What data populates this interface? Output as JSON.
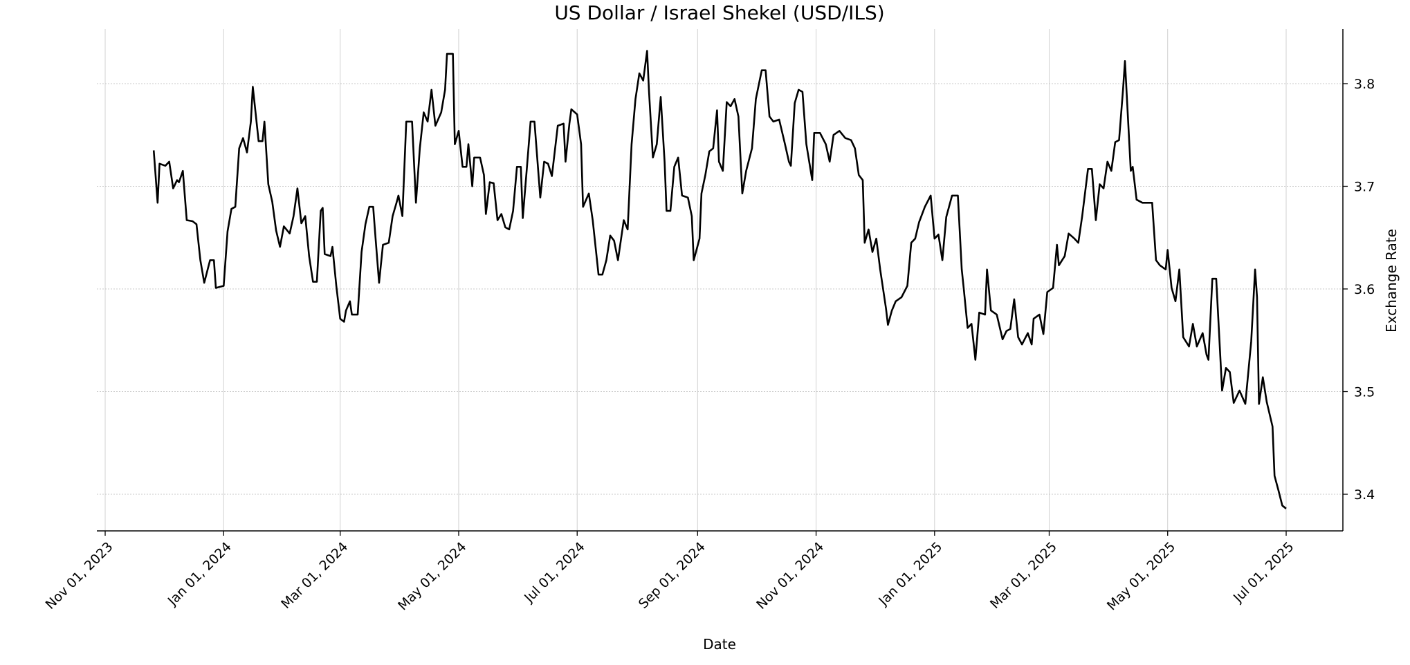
{
  "chart_data": {
    "type": "line",
    "title": "US Dollar / Israel Shekel (USD/ILS)",
    "xlabel": "Date",
    "ylabel": "Exchange Rate",
    "x_origin": "2023-11-01",
    "x_unit": "days since 2023-11-01",
    "xlim": [
      -4,
      626
    ],
    "ylim": [
      3.364,
      3.853
    ],
    "grid": true,
    "y_axis_side": "right",
    "x_ticks": [
      {
        "day": 0,
        "label": "Nov 01, 2023"
      },
      {
        "day": 61,
        "label": "Jan 01, 2024"
      },
      {
        "day": 121,
        "label": "Mar 01, 2024"
      },
      {
        "day": 182,
        "label": "May 01, 2024"
      },
      {
        "day": 243,
        "label": "Jul 01, 2024"
      },
      {
        "day": 305,
        "label": "Sep 01, 2024"
      },
      {
        "day": 366,
        "label": "Nov 01, 2024"
      },
      {
        "day": 427,
        "label": "Jan 01, 2025"
      },
      {
        "day": 486,
        "label": "Mar 01, 2025"
      },
      {
        "day": 547,
        "label": "May 01, 2025"
      },
      {
        "day": 608,
        "label": "Jul 01, 2025"
      }
    ],
    "y_ticks": [
      {
        "value": 3.4,
        "label": "3.4"
      },
      {
        "value": 3.5,
        "label": "3.5"
      },
      {
        "value": 3.6,
        "label": "3.6"
      },
      {
        "value": 3.7,
        "label": "3.7"
      },
      {
        "value": 3.8,
        "label": "3.8"
      }
    ],
    "series": [
      {
        "name": "USD/ILS",
        "color": "#000000",
        "points": [
          [
            25,
            3.735
          ],
          [
            27,
            3.684
          ],
          [
            28,
            3.722
          ],
          [
            31,
            3.72
          ],
          [
            33,
            3.724
          ],
          [
            35,
            3.698
          ],
          [
            37,
            3.706
          ],
          [
            38,
            3.704
          ],
          [
            40,
            3.715
          ],
          [
            42,
            3.667
          ],
          [
            45,
            3.666
          ],
          [
            47,
            3.663
          ],
          [
            49,
            3.628
          ],
          [
            51,
            3.606
          ],
          [
            54,
            3.628
          ],
          [
            56,
            3.628
          ],
          [
            57,
            3.601
          ],
          [
            61,
            3.603
          ],
          [
            63,
            3.656
          ],
          [
            65,
            3.678
          ],
          [
            67,
            3.68
          ],
          [
            69,
            3.737
          ],
          [
            71,
            3.747
          ],
          [
            73,
            3.733
          ],
          [
            75,
            3.763
          ],
          [
            76,
            3.797
          ],
          [
            79,
            3.744
          ],
          [
            81,
            3.744
          ],
          [
            82,
            3.763
          ],
          [
            84,
            3.702
          ],
          [
            86,
            3.685
          ],
          [
            88,
            3.657
          ],
          [
            90,
            3.641
          ],
          [
            92,
            3.661
          ],
          [
            95,
            3.654
          ],
          [
            97,
            3.671
          ],
          [
            99,
            3.698
          ],
          [
            101,
            3.664
          ],
          [
            103,
            3.671
          ],
          [
            105,
            3.632
          ],
          [
            107,
            3.607
          ],
          [
            109,
            3.607
          ],
          [
            111,
            3.676
          ],
          [
            112,
            3.679
          ],
          [
            113,
            3.634
          ],
          [
            116,
            3.632
          ],
          [
            117,
            3.641
          ],
          [
            119,
            3.603
          ],
          [
            121,
            3.571
          ],
          [
            123,
            3.568
          ],
          [
            124,
            3.579
          ],
          [
            126,
            3.588
          ],
          [
            127,
            3.575
          ],
          [
            130,
            3.575
          ],
          [
            132,
            3.636
          ],
          [
            134,
            3.663
          ],
          [
            136,
            3.68
          ],
          [
            138,
            3.68
          ],
          [
            139,
            3.654
          ],
          [
            141,
            3.606
          ],
          [
            143,
            3.643
          ],
          [
            146,
            3.645
          ],
          [
            148,
            3.671
          ],
          [
            150,
            3.684
          ],
          [
            151,
            3.691
          ],
          [
            153,
            3.671
          ],
          [
            155,
            3.763
          ],
          [
            158,
            3.763
          ],
          [
            160,
            3.684
          ],
          [
            162,
            3.737
          ],
          [
            164,
            3.772
          ],
          [
            166,
            3.763
          ],
          [
            168,
            3.794
          ],
          [
            170,
            3.759
          ],
          [
            173,
            3.772
          ],
          [
            175,
            3.794
          ],
          [
            176,
            3.829
          ],
          [
            179,
            3.829
          ],
          [
            180,
            3.741
          ],
          [
            182,
            3.754
          ],
          [
            184,
            3.719
          ],
          [
            186,
            3.719
          ],
          [
            187,
            3.741
          ],
          [
            189,
            3.7
          ],
          [
            190,
            3.728
          ],
          [
            193,
            3.728
          ],
          [
            195,
            3.711
          ],
          [
            196,
            3.673
          ],
          [
            198,
            3.704
          ],
          [
            200,
            3.703
          ],
          [
            202,
            3.667
          ],
          [
            204,
            3.673
          ],
          [
            206,
            3.66
          ],
          [
            208,
            3.658
          ],
          [
            210,
            3.676
          ],
          [
            212,
            3.719
          ],
          [
            214,
            3.719
          ],
          [
            215,
            3.669
          ],
          [
            217,
            3.715
          ],
          [
            219,
            3.763
          ],
          [
            221,
            3.763
          ],
          [
            224,
            3.689
          ],
          [
            226,
            3.724
          ],
          [
            228,
            3.722
          ],
          [
            230,
            3.71
          ],
          [
            233,
            3.759
          ],
          [
            236,
            3.761
          ],
          [
            237,
            3.724
          ],
          [
            239,
            3.761
          ],
          [
            240,
            3.775
          ],
          [
            243,
            3.77
          ],
          [
            245,
            3.741
          ],
          [
            246,
            3.68
          ],
          [
            249,
            3.693
          ],
          [
            251,
            3.667
          ],
          [
            254,
            3.614
          ],
          [
            256,
            3.614
          ],
          [
            258,
            3.628
          ],
          [
            260,
            3.652
          ],
          [
            262,
            3.647
          ],
          [
            264,
            3.628
          ],
          [
            267,
            3.667
          ],
          [
            269,
            3.658
          ],
          [
            271,
            3.741
          ],
          [
            273,
            3.785
          ],
          [
            275,
            3.81
          ],
          [
            277,
            3.803
          ],
          [
            279,
            3.832
          ],
          [
            280,
            3.792
          ],
          [
            282,
            3.728
          ],
          [
            284,
            3.741
          ],
          [
            286,
            3.787
          ],
          [
            288,
            3.724
          ],
          [
            289,
            3.676
          ],
          [
            291,
            3.676
          ],
          [
            293,
            3.719
          ],
          [
            295,
            3.728
          ],
          [
            297,
            3.691
          ],
          [
            300,
            3.689
          ],
          [
            302,
            3.671
          ],
          [
            303,
            3.628
          ],
          [
            306,
            3.649
          ],
          [
            307,
            3.693
          ],
          [
            309,
            3.711
          ],
          [
            311,
            3.734
          ],
          [
            313,
            3.737
          ],
          [
            315,
            3.774
          ],
          [
            316,
            3.724
          ],
          [
            318,
            3.715
          ],
          [
            320,
            3.782
          ],
          [
            322,
            3.778
          ],
          [
            324,
            3.785
          ],
          [
            326,
            3.768
          ],
          [
            328,
            3.693
          ],
          [
            330,
            3.715
          ],
          [
            333,
            3.737
          ],
          [
            335,
            3.785
          ],
          [
            338,
            3.813
          ],
          [
            340,
            3.813
          ],
          [
            342,
            3.768
          ],
          [
            344,
            3.763
          ],
          [
            347,
            3.765
          ],
          [
            350,
            3.741
          ],
          [
            352,
            3.724
          ],
          [
            353,
            3.72
          ],
          [
            355,
            3.781
          ],
          [
            357,
            3.794
          ],
          [
            359,
            3.792
          ],
          [
            361,
            3.741
          ],
          [
            364,
            3.706
          ],
          [
            365,
            3.752
          ],
          [
            368,
            3.752
          ],
          [
            371,
            3.741
          ],
          [
            373,
            3.724
          ],
          [
            375,
            3.75
          ],
          [
            378,
            3.754
          ],
          [
            381,
            3.747
          ],
          [
            384,
            3.745
          ],
          [
            386,
            3.737
          ],
          [
            388,
            3.711
          ],
          [
            390,
            3.706
          ],
          [
            391,
            3.645
          ],
          [
            393,
            3.658
          ],
          [
            395,
            3.636
          ],
          [
            397,
            3.649
          ],
          [
            399,
            3.619
          ],
          [
            402,
            3.581
          ],
          [
            403,
            3.565
          ],
          [
            405,
            3.579
          ],
          [
            407,
            3.588
          ],
          [
            410,
            3.592
          ],
          [
            413,
            3.603
          ],
          [
            415,
            3.645
          ],
          [
            417,
            3.649
          ],
          [
            419,
            3.665
          ],
          [
            422,
            3.68
          ],
          [
            425,
            3.691
          ],
          [
            427,
            3.649
          ],
          [
            429,
            3.653
          ],
          [
            431,
            3.628
          ],
          [
            433,
            3.67
          ],
          [
            436,
            3.691
          ],
          [
            439,
            3.691
          ],
          [
            441,
            3.619
          ],
          [
            442,
            3.601
          ],
          [
            444,
            3.562
          ],
          [
            446,
            3.566
          ],
          [
            448,
            3.531
          ],
          [
            450,
            3.577
          ],
          [
            453,
            3.575
          ],
          [
            454,
            3.619
          ],
          [
            456,
            3.579
          ],
          [
            459,
            3.575
          ],
          [
            462,
            3.551
          ],
          [
            464,
            3.559
          ],
          [
            466,
            3.561
          ],
          [
            468,
            3.59
          ],
          [
            470,
            3.553
          ],
          [
            472,
            3.546
          ],
          [
            475,
            3.557
          ],
          [
            477,
            3.546
          ],
          [
            478,
            3.571
          ],
          [
            481,
            3.575
          ],
          [
            483,
            3.556
          ],
          [
            485,
            3.597
          ],
          [
            488,
            3.601
          ],
          [
            490,
            3.643
          ],
          [
            491,
            3.623
          ],
          [
            494,
            3.632
          ],
          [
            496,
            3.654
          ],
          [
            499,
            3.649
          ],
          [
            501,
            3.645
          ],
          [
            503,
            3.671
          ],
          [
            506,
            3.717
          ],
          [
            508,
            3.717
          ],
          [
            510,
            3.667
          ],
          [
            512,
            3.702
          ],
          [
            514,
            3.698
          ],
          [
            516,
            3.724
          ],
          [
            518,
            3.715
          ],
          [
            520,
            3.743
          ],
          [
            522,
            3.745
          ],
          [
            524,
            3.794
          ],
          [
            525,
            3.822
          ],
          [
            528,
            3.715
          ],
          [
            529,
            3.719
          ],
          [
            531,
            3.687
          ],
          [
            534,
            3.684
          ],
          [
            537,
            3.684
          ],
          [
            539,
            3.684
          ],
          [
            541,
            3.628
          ],
          [
            543,
            3.623
          ],
          [
            546,
            3.619
          ],
          [
            547,
            3.638
          ],
          [
            549,
            3.601
          ],
          [
            551,
            3.588
          ],
          [
            553,
            3.619
          ],
          [
            555,
            3.553
          ],
          [
            558,
            3.544
          ],
          [
            560,
            3.566
          ],
          [
            562,
            3.544
          ],
          [
            565,
            3.557
          ],
          [
            567,
            3.536
          ],
          [
            568,
            3.531
          ],
          [
            570,
            3.61
          ],
          [
            572,
            3.61
          ],
          [
            575,
            3.501
          ],
          [
            577,
            3.523
          ],
          [
            579,
            3.519
          ],
          [
            581,
            3.489
          ],
          [
            584,
            3.501
          ],
          [
            587,
            3.488
          ],
          [
            590,
            3.549
          ],
          [
            592,
            3.619
          ],
          [
            593,
            3.592
          ],
          [
            594,
            3.488
          ],
          [
            596,
            3.514
          ],
          [
            598,
            3.49
          ],
          [
            601,
            3.466
          ],
          [
            602,
            3.418
          ],
          [
            604,
            3.404
          ],
          [
            606,
            3.389
          ],
          [
            608,
            3.386
          ]
        ]
      }
    ]
  }
}
